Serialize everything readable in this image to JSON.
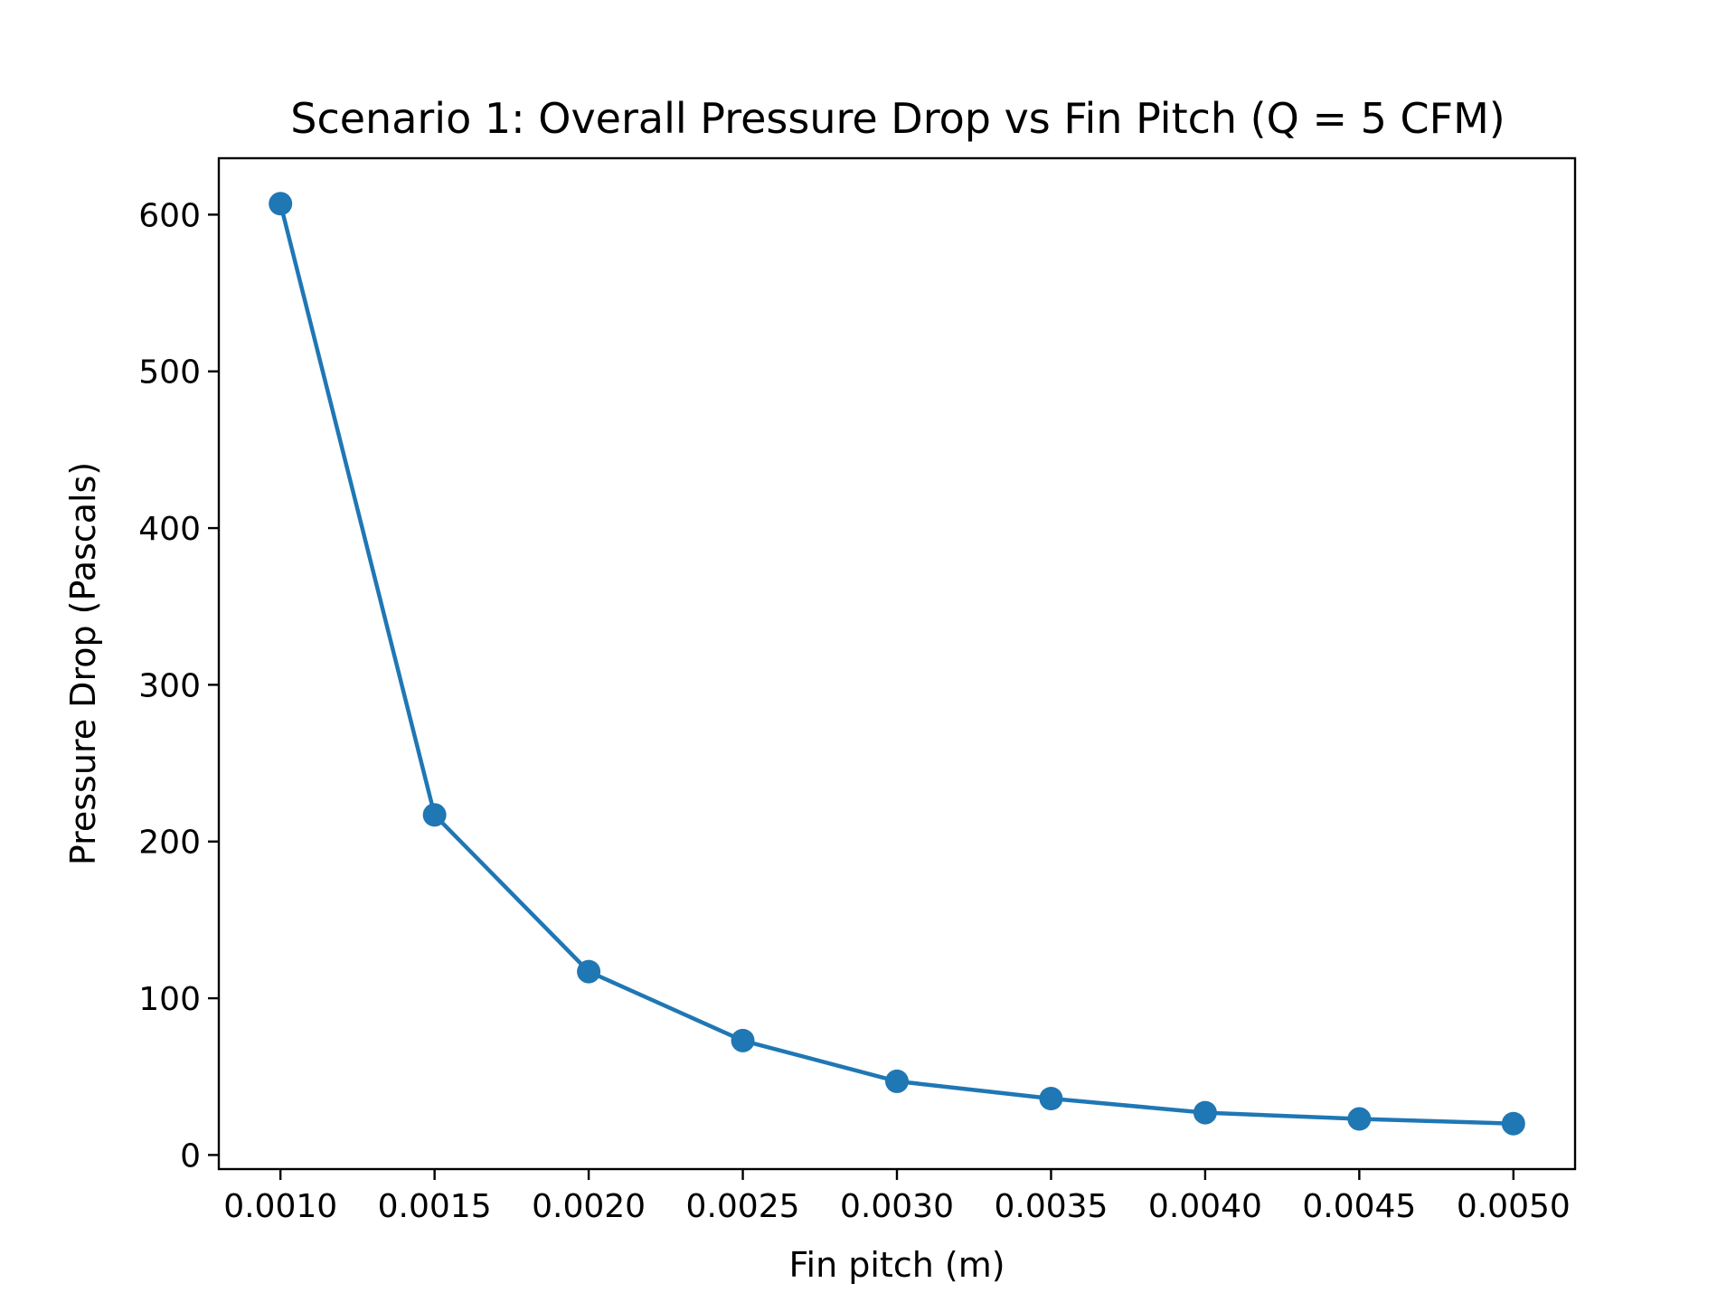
{
  "chart_data": {
    "type": "line",
    "title": "Scenario 1: Overall Pressure Drop vs Fin Pitch (Q = 5 CFM)",
    "xlabel": "Fin pitch (m)",
    "ylabel": "Pressure Drop (Pascals)",
    "xlim": [
      0.0008,
      0.0052
    ],
    "ylim": [
      -9,
      636
    ],
    "x_ticks": [
      0.001,
      0.0015,
      0.002,
      0.0025,
      0.003,
      0.0035,
      0.004,
      0.0045,
      0.005
    ],
    "x_tick_labels": [
      "0.0010",
      "0.0015",
      "0.0020",
      "0.0025",
      "0.0030",
      "0.0035",
      "0.0040",
      "0.0045",
      "0.0050"
    ],
    "y_ticks": [
      0,
      100,
      200,
      300,
      400,
      500,
      600
    ],
    "y_tick_labels": [
      "0",
      "100",
      "200",
      "300",
      "400",
      "500",
      "600"
    ],
    "grid": false,
    "series": [
      {
        "color": "#1f77b4",
        "marker": "circle",
        "x": [
          0.001,
          0.0015,
          0.002,
          0.0025,
          0.003,
          0.0035,
          0.004,
          0.0045,
          0.005
        ],
        "y": [
          607,
          217,
          117,
          73,
          47,
          36,
          27,
          23,
          20
        ]
      }
    ]
  }
}
